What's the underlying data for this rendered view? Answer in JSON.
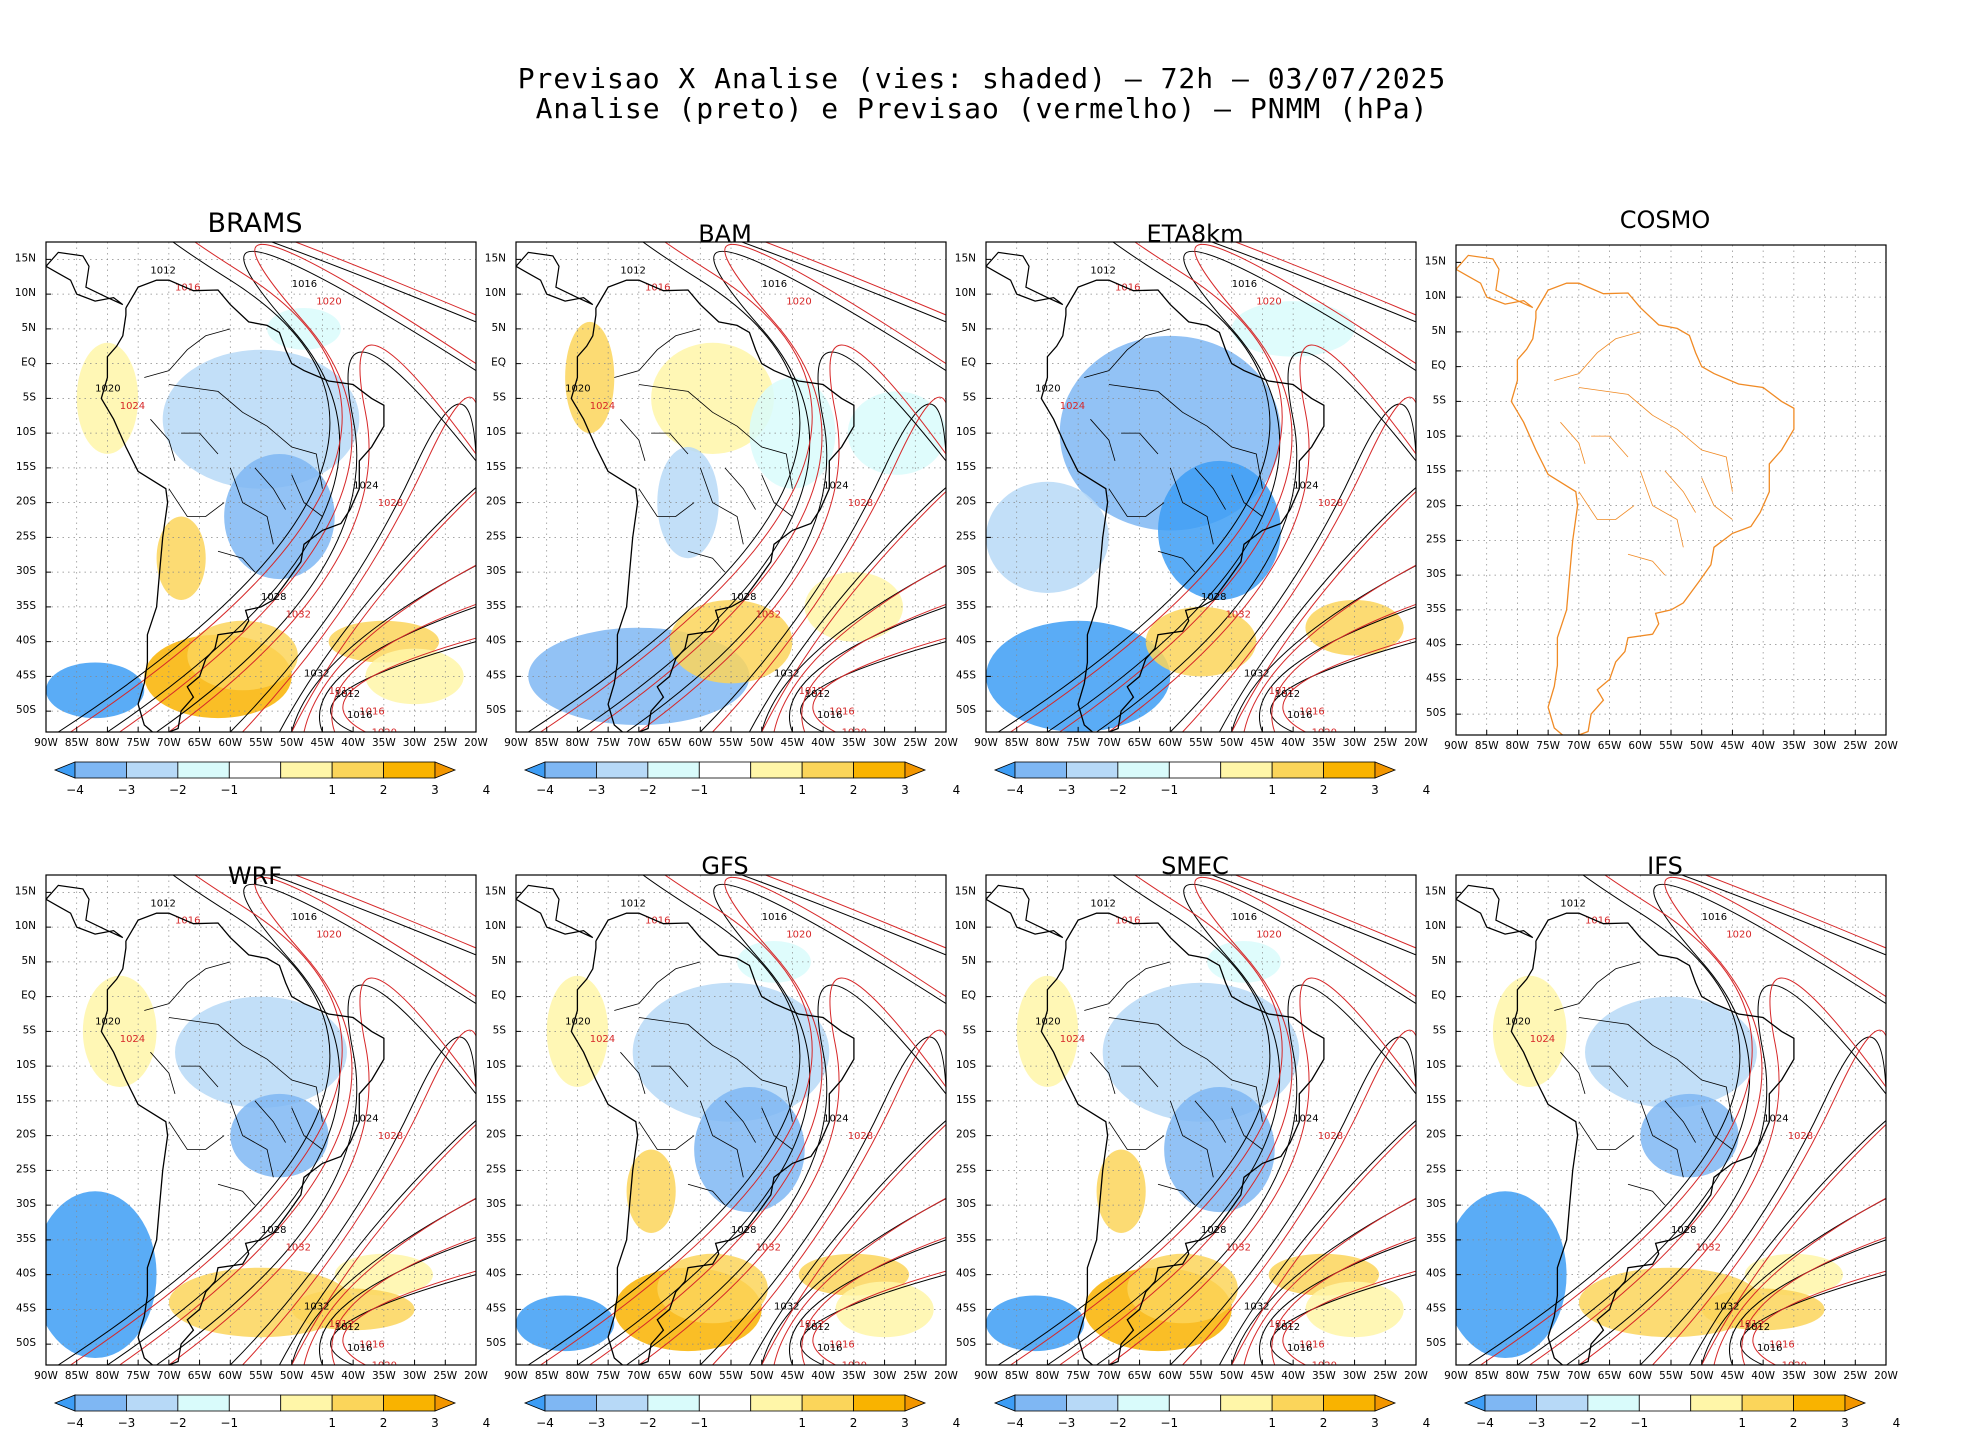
{
  "title": {
    "line1": "Previsao X Analise (vies: shaded) — 72h — 03/07/2025",
    "line2": "Analise (preto) e Previsao (vermelho) — PNMM (hPa)"
  },
  "panels": [
    {
      "name": "BRAMS",
      "bias": "warm-south"
    },
    {
      "name": "BAM",
      "bias": "mixed"
    },
    {
      "name": "ETA8km",
      "bias": "cold"
    },
    {
      "name": "COSMO",
      "bias": "empty"
    },
    {
      "name": "WRF",
      "bias": "cold-west"
    },
    {
      "name": "GFS",
      "bias": "warm-south"
    },
    {
      "name": "SMEC",
      "bias": "warm-south"
    },
    {
      "name": "IFS",
      "bias": "cold-west"
    }
  ],
  "axes": {
    "lon_labels": [
      "90W",
      "85W",
      "80W",
      "75W",
      "70W",
      "65W",
      "60W",
      "55W",
      "50W",
      "45W",
      "40W",
      "35W",
      "30W",
      "25W",
      "20W"
    ],
    "lat_labels": [
      "15N",
      "10N",
      "5N",
      "EQ",
      "5S",
      "10S",
      "15S",
      "20S",
      "25S",
      "30S",
      "35S",
      "40S",
      "45S",
      "50S"
    ]
  },
  "colorbar": {
    "labels": [
      "−4",
      "−3",
      "−2",
      "−1",
      "1",
      "2",
      "3",
      "4"
    ],
    "colors": [
      "#3d9df5",
      "#7fb7f3",
      "#b7d9f7",
      "#d9fbfb",
      "#ffffff",
      "#fff6a8",
      "#fbd55a",
      "#f9b300",
      "#f29600"
    ]
  },
  "isobar_labels": {
    "analysis": [
      "1012",
      "1016",
      "1020",
      "1024",
      "1028",
      "1032"
    ],
    "forecast": [
      "1012",
      "1016",
      "1020",
      "1024",
      "1028",
      "1032"
    ]
  },
  "colors": {
    "analysis": "#000000",
    "forecast": "#d62728",
    "coast_cosmo": "#f08a24",
    "grid": "#888888"
  }
}
